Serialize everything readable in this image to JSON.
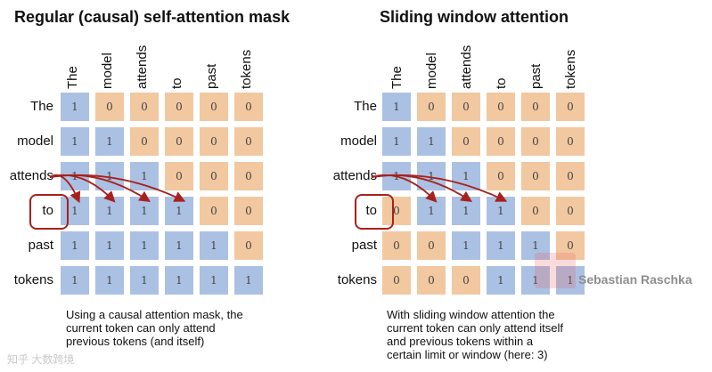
{
  "tokens": [
    "The",
    "model",
    "attends",
    "to",
    "past",
    "tokens"
  ],
  "highlighted_token": "to",
  "colors": {
    "one": "#abc1e3",
    "zero": "#f2c8a0",
    "highlight": "#a8211d"
  },
  "panels": [
    {
      "title": "Regular (causal) self-attention mask",
      "matrix": [
        [
          "1",
          "0",
          "0",
          "0",
          "0",
          "0"
        ],
        [
          "1",
          "1",
          "0",
          "0",
          "0",
          "0"
        ],
        [
          "1",
          "1",
          "1",
          "0",
          "0",
          "0"
        ],
        [
          "1",
          "1",
          "1",
          "1",
          "0",
          "0"
        ],
        [
          "1",
          "1",
          "1",
          "1",
          "1",
          "0"
        ],
        [
          "1",
          "1",
          "1",
          "1",
          "1",
          "1"
        ]
      ],
      "caption": "Using a causal attention mask, the\ncurrent token can only attend\nprevious tokens (and itself)"
    },
    {
      "title": "Sliding window attention",
      "matrix": [
        [
          "1",
          "0",
          "0",
          "0",
          "0",
          "0"
        ],
        [
          "1",
          "1",
          "0",
          "0",
          "0",
          "0"
        ],
        [
          "1",
          "1",
          "1",
          "0",
          "0",
          "0"
        ],
        [
          "0",
          "1",
          "1",
          "1",
          "0",
          "0"
        ],
        [
          "0",
          "0",
          "1",
          "1",
          "1",
          "0"
        ],
        [
          "0",
          "0",
          "0",
          "1",
          "1",
          "1"
        ]
      ],
      "caption": "With sliding window attention the\ncurrent token can only attend itself\nand previous tokens within a\ncertain limit or window (here: 3)"
    }
  ],
  "watermarks": {
    "author": "Sebastian Raschka",
    "site": "知乎 大数跨境"
  }
}
